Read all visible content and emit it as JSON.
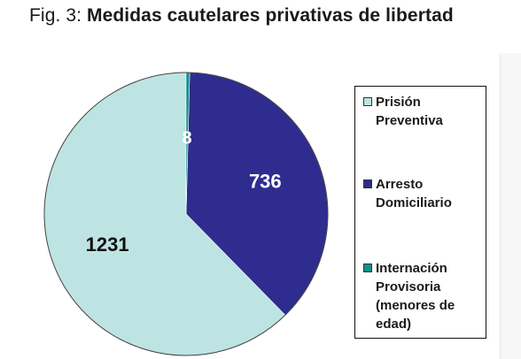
{
  "title_prefix": "Fig. 3:",
  "title_main": "Medidas cautelares privativas de libertad",
  "chart_data": {
    "type": "pie",
    "title": "Medidas cautelares privativas de libertad",
    "series": [
      {
        "name": "Prisión Preventiva",
        "value": 1231,
        "color": "#bde4e3",
        "label_color": "#111111"
      },
      {
        "name": "Arresto Domiciliario",
        "value": 736,
        "color": "#2e2c8f",
        "label_color": "#ffffff"
      },
      {
        "name": "Internación Provisoria (menores de edad)",
        "value": 8,
        "color": "#12908a",
        "label_color": "#ffffff"
      }
    ],
    "legend_position": "right"
  }
}
